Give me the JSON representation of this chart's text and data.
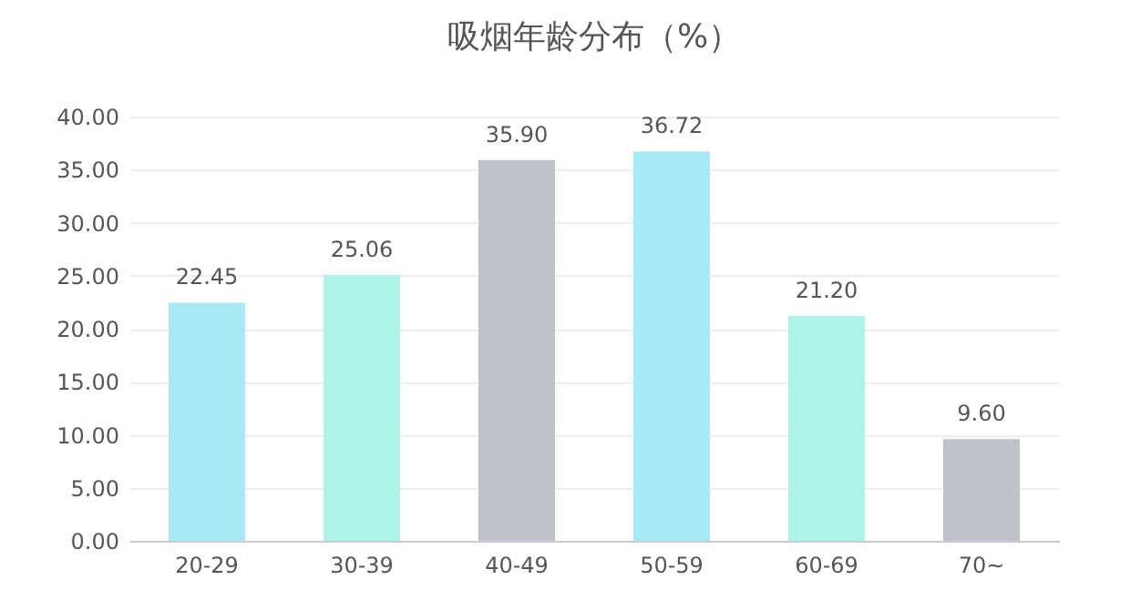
{
  "chart_data": {
    "type": "bar",
    "title": "吸烟年龄分布（%）",
    "categories": [
      "20-29",
      "30-39",
      "40-49",
      "50-59",
      "60-69",
      "70~"
    ],
    "values": [
      22.45,
      25.06,
      35.9,
      36.72,
      21.2,
      9.6
    ],
    "value_labels": [
      "22.45",
      "25.06",
      "35.90",
      "36.72",
      "21.20",
      "9.60"
    ],
    "colors": [
      "#a9e9f3",
      "#aef2e8",
      "#bfc1cb",
      "#a9e9f3",
      "#aef2e8",
      "#bfc1cb"
    ],
    "ylim": [
      0,
      40
    ],
    "yticks": [
      {
        "value": 0,
        "label": "0.00"
      },
      {
        "value": 5,
        "label": "5.00"
      },
      {
        "value": 10,
        "label": "10.00"
      },
      {
        "value": 15,
        "label": "15.00"
      },
      {
        "value": 20,
        "label": "20.00"
      },
      {
        "value": 25,
        "label": "25.00"
      },
      {
        "value": 30,
        "label": "30.00"
      },
      {
        "value": 35,
        "label": "35.00"
      },
      {
        "value": 40,
        "label": "40.00"
      }
    ],
    "grid": "y"
  }
}
